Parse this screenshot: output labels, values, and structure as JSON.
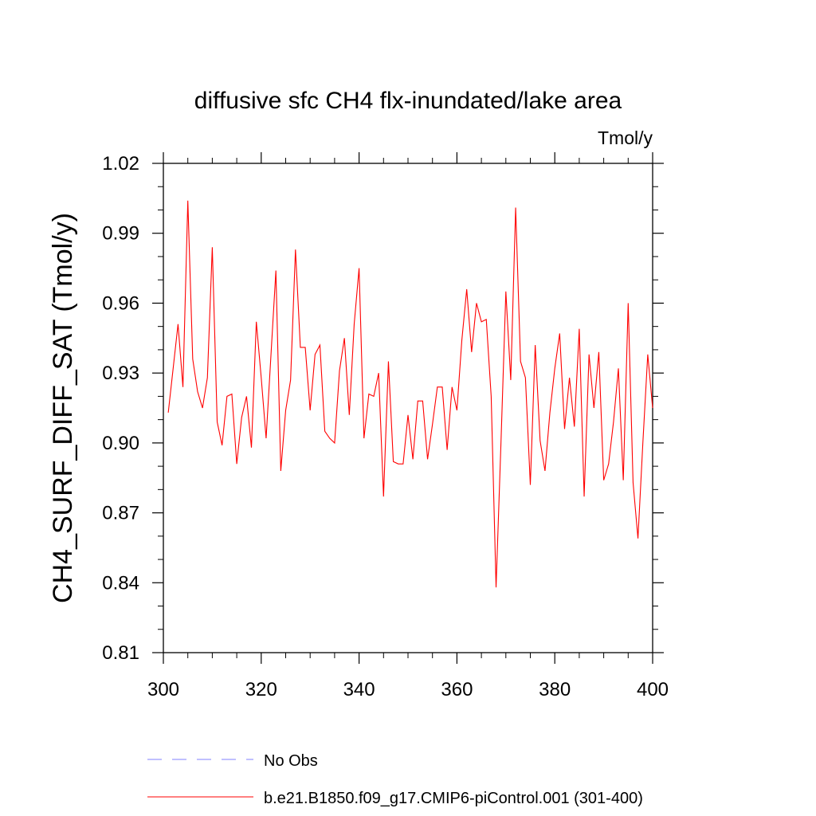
{
  "chart_data": {
    "type": "line",
    "title": "diffusive sfc CH4 flx-inundated/lake area",
    "units": "Tmol/y",
    "ylabel": "CH4_SURF_DIFF_SAT  (Tmol/y)",
    "xlabel": "",
    "xlim": [
      300,
      400
    ],
    "ylim": [
      0.81,
      1.02
    ],
    "xticks": [
      300,
      320,
      340,
      360,
      380,
      400
    ],
    "xtick_labels": [
      "300",
      "320",
      "340",
      "360",
      "380",
      "400"
    ],
    "yticks": [
      0.81,
      0.84,
      0.87,
      0.9,
      0.93,
      0.96,
      0.99,
      1.02
    ],
    "ytick_labels": [
      "0.81",
      "0.84",
      "0.87",
      "0.90",
      "0.93",
      "0.96",
      "0.99",
      "1.02"
    ],
    "grid": false,
    "legend_position": "bottom",
    "series": [
      {
        "name": "No Obs",
        "color": "#8080ff",
        "dash": "dashed",
        "x": [],
        "values": []
      },
      {
        "name": "b.e21.B1850.f09_g17.CMIP6-piControl.001 (301-400)",
        "color": "#ff0000",
        "dash": "solid",
        "x": [
          301,
          302,
          303,
          304,
          305,
          306,
          307,
          308,
          309,
          310,
          311,
          312,
          313,
          314,
          315,
          316,
          317,
          318,
          319,
          320,
          321,
          322,
          323,
          324,
          325,
          326,
          327,
          328,
          329,
          330,
          331,
          332,
          333,
          334,
          335,
          336,
          337,
          338,
          339,
          340,
          341,
          342,
          343,
          344,
          345,
          346,
          347,
          348,
          349,
          350,
          351,
          352,
          353,
          354,
          355,
          356,
          357,
          358,
          359,
          360,
          361,
          362,
          363,
          364,
          365,
          366,
          367,
          368,
          369,
          370,
          371,
          372,
          373,
          374,
          375,
          376,
          377,
          378,
          379,
          380,
          381,
          382,
          383,
          384,
          385,
          386,
          387,
          388,
          389,
          390,
          391,
          392,
          393,
          394,
          395,
          396,
          397,
          398,
          399,
          400
        ],
        "values": [
          0.913,
          0.932,
          0.951,
          0.924,
          1.004,
          0.936,
          0.922,
          0.915,
          0.928,
          0.984,
          0.909,
          0.899,
          0.92,
          0.921,
          0.891,
          0.911,
          0.92,
          0.898,
          0.952,
          0.928,
          0.902,
          0.938,
          0.974,
          0.888,
          0.914,
          0.927,
          0.983,
          0.941,
          0.941,
          0.914,
          0.938,
          0.942,
          0.905,
          0.902,
          0.9,
          0.931,
          0.945,
          0.912,
          0.951,
          0.975,
          0.902,
          0.921,
          0.92,
          0.93,
          0.877,
          0.935,
          0.892,
          0.891,
          0.891,
          0.912,
          0.893,
          0.918,
          0.918,
          0.893,
          0.908,
          0.924,
          0.924,
          0.897,
          0.924,
          0.914,
          0.944,
          0.966,
          0.939,
          0.96,
          0.952,
          0.953,
          0.92,
          0.838,
          0.9,
          0.965,
          0.927,
          1.001,
          0.935,
          0.928,
          0.882,
          0.942,
          0.901,
          0.888,
          0.913,
          0.932,
          0.947,
          0.906,
          0.928,
          0.907,
          0.949,
          0.877,
          0.938,
          0.915,
          0.939,
          0.884,
          0.891,
          0.909,
          0.932,
          0.884,
          0.96,
          0.883,
          0.859,
          0.9,
          0.938,
          0.915
        ]
      }
    ]
  }
}
